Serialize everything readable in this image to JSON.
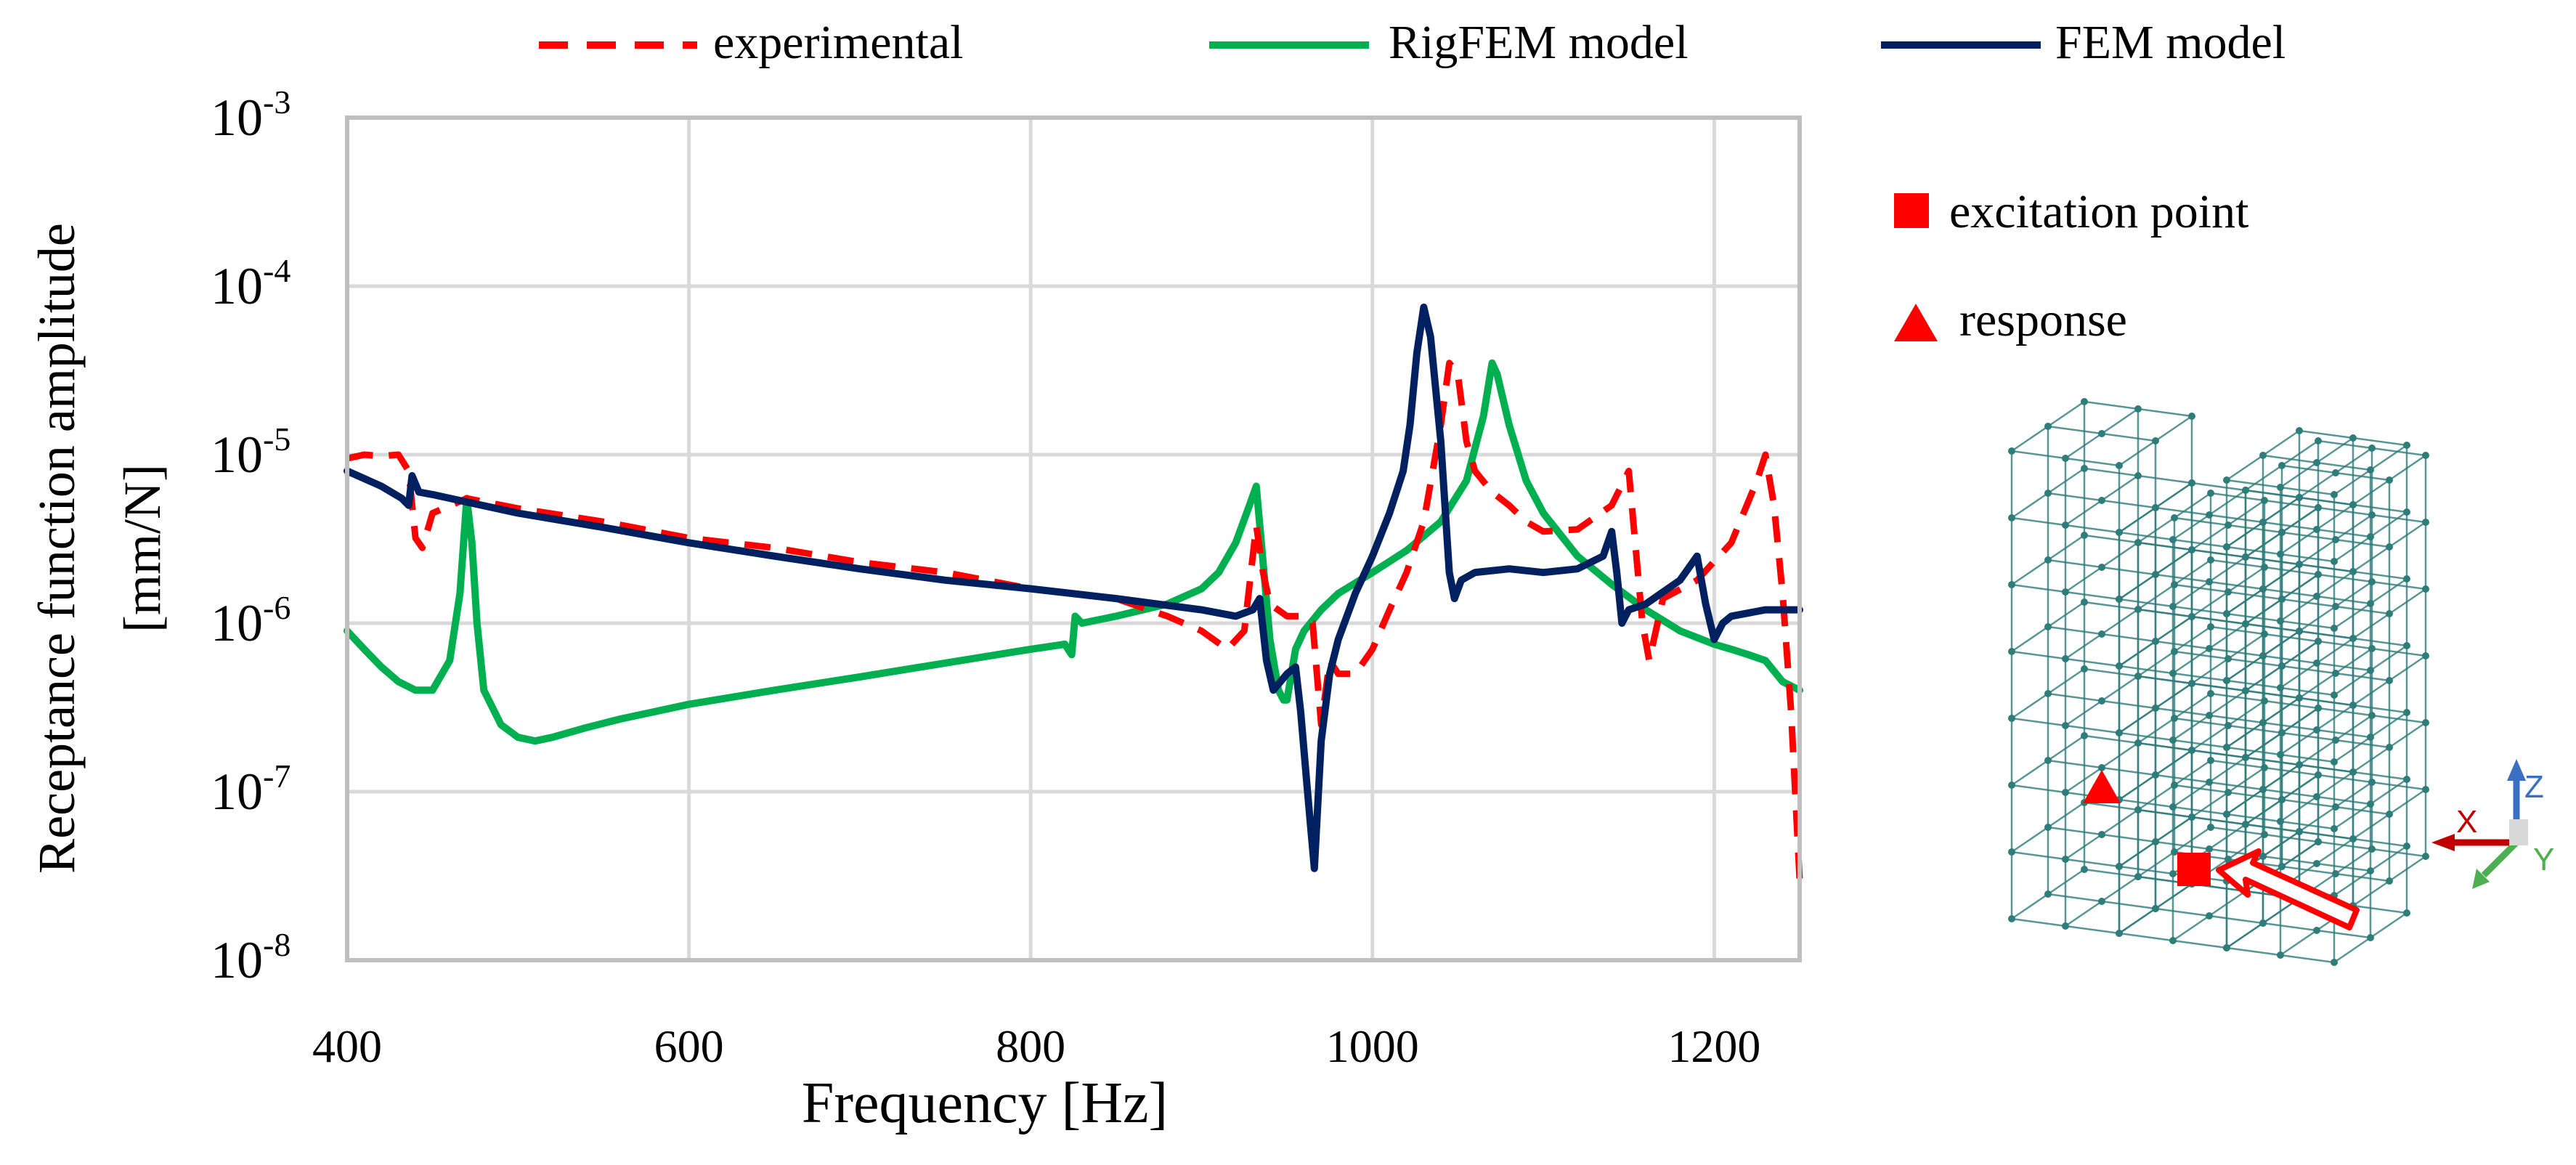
{
  "chart_data": {
    "type": "line",
    "title": "",
    "xlabel": "Frequency [Hz]",
    "ylabel_line1": "Receptance function amplitude",
    "ylabel_line2": "[mm/N]",
    "xlim": [
      400,
      1250
    ],
    "ylim": [
      1e-08,
      0.001
    ],
    "yscale": "log",
    "grid": true,
    "legend_position": "top",
    "x_ticks": [
      {
        "value": 400,
        "label": "400"
      },
      {
        "value": 600,
        "label": "600"
      },
      {
        "value": 800,
        "label": "800"
      },
      {
        "value": 1000,
        "label": "1000"
      },
      {
        "value": 1200,
        "label": "1200"
      }
    ],
    "y_ticks": [
      {
        "value": 0.001,
        "base": "10",
        "exp": "-3"
      },
      {
        "value": 0.0001,
        "base": "10",
        "exp": "-4"
      },
      {
        "value": 1e-05,
        "base": "10",
        "exp": "-5"
      },
      {
        "value": 1e-06,
        "base": "10",
        "exp": "-6"
      },
      {
        "value": 1e-07,
        "base": "10",
        "exp": "-7"
      },
      {
        "value": 1e-08,
        "base": "10",
        "exp": "-8"
      }
    ],
    "series": [
      {
        "name": "experimental",
        "color": "#ff0000",
        "style": "dashed",
        "x": [
          400,
          410,
          420,
          430,
          436,
          440,
          444,
          450,
          470,
          500,
          550,
          600,
          650,
          700,
          750,
          800,
          850,
          880,
          900,
          915,
          925,
          932,
          936,
          940,
          950,
          960,
          965,
          970,
          975,
          980,
          990,
          1000,
          1010,
          1020,
          1030,
          1040,
          1045,
          1050,
          1055,
          1060,
          1070,
          1080,
          1090,
          1100,
          1120,
          1140,
          1150,
          1158,
          1162,
          1170,
          1190,
          1210,
          1225,
          1230,
          1235,
          1240,
          1245,
          1250
        ],
        "values": [
          9.5e-06,
          1e-05,
          9.8e-06,
          1e-05,
          8e-06,
          3.2e-06,
          2.8e-06,
          4.5e-06,
          5.5e-06,
          4.8e-06,
          4e-06,
          3.2e-06,
          2.8e-06,
          2.3e-06,
          2e-06,
          1.6e-06,
          1.4e-06,
          1.1e-06,
          9e-07,
          7e-07,
          9e-07,
          3.8e-06,
          2e-06,
          1.3e-06,
          1.1e-06,
          1.1e-06,
          1e-06,
          2.5e-07,
          6e-07,
          5e-07,
          5e-07,
          7e-07,
          1.2e-06,
          2e-06,
          4e-06,
          1.5e-05,
          3.5e-05,
          3e-05,
          1.2e-05,
          8e-06,
          6e-06,
          5e-06,
          4e-06,
          3.5e-06,
          3.6e-06,
          5e-06,
          8e-06,
          1e-06,
          6e-07,
          1.4e-06,
          1.8e-06,
          3e-06,
          7e-06,
          1e-05,
          5e-06,
          1.5e-06,
          3e-07,
          3e-08
        ]
      },
      {
        "name": "RigFEM model",
        "color": "#00b050",
        "style": "solid",
        "x": [
          400,
          410,
          420,
          430,
          440,
          450,
          460,
          466,
          470,
          473,
          476,
          480,
          490,
          500,
          510,
          520,
          540,
          560,
          600,
          650,
          700,
          750,
          800,
          820,
          824,
          826,
          830,
          850,
          880,
          900,
          910,
          920,
          928,
          932,
          935,
          940,
          945,
          948,
          950,
          955,
          960,
          970,
          980,
          1000,
          1020,
          1040,
          1055,
          1065,
          1070,
          1073,
          1080,
          1090,
          1100,
          1120,
          1140,
          1160,
          1180,
          1200,
          1210,
          1220,
          1230,
          1240,
          1250
        ],
        "values": [
          9e-07,
          7e-07,
          5.5e-07,
          4.5e-07,
          4e-07,
          4e-07,
          6e-07,
          1.5e-06,
          5.5e-06,
          3e-06,
          1e-06,
          4e-07,
          2.5e-07,
          2.1e-07,
          2e-07,
          2.1e-07,
          2.4e-07,
          2.7e-07,
          3.3e-07,
          4e-07,
          4.8e-07,
          5.8e-07,
          7e-07,
          7.5e-07,
          6.5e-07,
          1.1e-06,
          1e-06,
          1.1e-06,
          1.3e-06,
          1.6e-06,
          2e-06,
          3e-06,
          5e-06,
          6.5e-06,
          3e-06,
          8e-07,
          4e-07,
          3.5e-07,
          3.5e-07,
          7e-07,
          9e-07,
          1.2e-06,
          1.5e-06,
          2e-06,
          2.7e-06,
          4e-06,
          7e-06,
          1.7e-05,
          3.5e-05,
          3e-05,
          1.5e-05,
          7e-06,
          4.5e-06,
          2.5e-06,
          1.7e-06,
          1.2e-06,
          9e-07,
          7.5e-07,
          7e-07,
          6.5e-07,
          6e-07,
          4.5e-07,
          4e-07
        ]
      },
      {
        "name": "FEM model",
        "color": "#002060",
        "style": "solid",
        "x": [
          400,
          420,
          432,
          436,
          438,
          442,
          450,
          500,
          550,
          600,
          650,
          700,
          750,
          800,
          850,
          900,
          920,
          930,
          934,
          938,
          942,
          950,
          955,
          958,
          962,
          966,
          970,
          975,
          980,
          990,
          1000,
          1010,
          1018,
          1022,
          1026,
          1030,
          1034,
          1040,
          1045,
          1048,
          1052,
          1060,
          1080,
          1100,
          1120,
          1135,
          1140,
          1143,
          1146,
          1150,
          1160,
          1180,
          1190,
          1195,
          1200,
          1205,
          1210,
          1230,
          1250
        ],
        "values": [
          8e-06,
          6.5e-06,
          5.5e-06,
          5e-06,
          7.5e-06,
          6e-06,
          5.8e-06,
          4.5e-06,
          3.7e-06,
          3e-06,
          2.5e-06,
          2.1e-06,
          1.8e-06,
          1.6e-06,
          1.4e-06,
          1.2e-06,
          1.1e-06,
          1.2e-06,
          1.4e-06,
          6e-07,
          4e-07,
          5e-07,
          5.5e-07,
          3e-07,
          1e-07,
          3.5e-08,
          2e-07,
          5e-07,
          8e-07,
          1.5e-06,
          2.5e-06,
          4.5e-06,
          8e-06,
          1.5e-05,
          4e-05,
          7.5e-05,
          5e-05,
          1.2e-05,
          2e-06,
          1.4e-06,
          1.8e-06,
          2e-06,
          2.1e-06,
          2e-06,
          2.1e-06,
          2.5e-06,
          3.5e-06,
          2e-06,
          1e-06,
          1.2e-06,
          1.3e-06,
          1.8e-06,
          2.5e-06,
          1.3e-06,
          8e-07,
          1e-06,
          1.1e-06,
          1.2e-06,
          1.2e-06
        ]
      }
    ]
  },
  "side_legend": {
    "excitation_label": "excitation point",
    "response_label": "response",
    "marker_color": "#ff0000"
  },
  "axes_triad": {
    "x_label": "X",
    "y_label": "Y",
    "z_label": "Z",
    "x_color": "#c00000",
    "y_color": "#4caf50",
    "z_color": "#3a6fc4"
  },
  "colors": {
    "grid": "#d9d9d9",
    "frame": "#bfbfbf",
    "structure": "#2e7d7a",
    "text": "#000000"
  }
}
